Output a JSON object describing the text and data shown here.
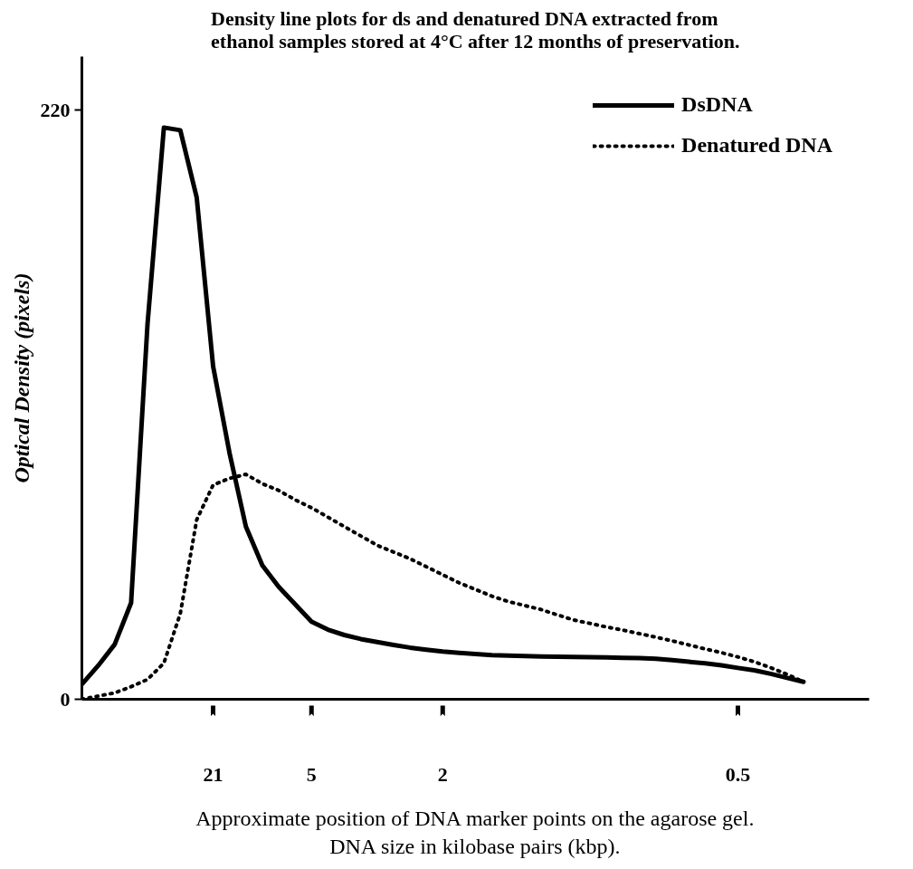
{
  "chart_data": {
    "type": "line",
    "title": "Density line plots for ds and denatured DNA extracted from\nethanol samples stored at 4°C after 12 months of preservation.",
    "xlabel": "Approximate position of DNA marker points on the agarose gel.\nDNA size in kilobase pairs (kbp).",
    "ylabel": "Optical Density (pixels)",
    "categories": [
      null,
      null,
      null,
      null,
      null,
      null,
      null,
      null,
      "21",
      null,
      null,
      null,
      null,
      null,
      "5",
      null,
      null,
      null,
      null,
      null,
      null,
      null,
      "2",
      null,
      null,
      null,
      null,
      null,
      null,
      null,
      null,
      null,
      null,
      null,
      null,
      null,
      null,
      null,
      null,
      null,
      "0.5",
      null,
      null,
      null,
      null,
      null,
      null,
      null,
      null
    ],
    "ylim": [
      0,
      240
    ],
    "yticks": [
      0,
      220
    ],
    "grid": false,
    "legend": "top right",
    "series": [
      {
        "name": "DsDNA",
        "color": "#000000",
        "line_style": "solid",
        "values": [
          5.6,
          12.6,
          20.5,
          36,
          140,
          213.5,
          212.5,
          187.4,
          124.4,
          92,
          64.5,
          50,
          42,
          35.5,
          29,
          26,
          24,
          22.5,
          21.4,
          20.3,
          19.3,
          18.5,
          17.8,
          17.3,
          16.9,
          16.5,
          16.3,
          16.1,
          16,
          15.9,
          15.8,
          15.7,
          15.6,
          15.5,
          15.4,
          15.1,
          14.6,
          14,
          13.4,
          12.7,
          11.7,
          10.8,
          9.5,
          8,
          6.5,
          null,
          null,
          null,
          null
        ]
      },
      {
        "name": "Denatured DNA",
        "color": "#000000",
        "line_style": "dotted",
        "values": [
          0,
          1.2,
          2.4,
          4.7,
          7.4,
          13.5,
          32,
          67,
          80,
          82.5,
          84,
          80.5,
          78,
          74.5,
          71.5,
          68,
          64.5,
          61,
          57.5,
          55,
          52.5,
          49.5,
          46.5,
          43.5,
          41,
          38.5,
          36.5,
          35,
          33.5,
          31.5,
          29.6,
          28.3,
          27,
          25.8,
          24.5,
          23.2,
          21.8,
          20.3,
          18.8,
          17.4,
          15.8,
          14,
          11.8,
          9.3,
          6.5,
          null,
          null,
          null,
          null
        ]
      }
    ]
  }
}
